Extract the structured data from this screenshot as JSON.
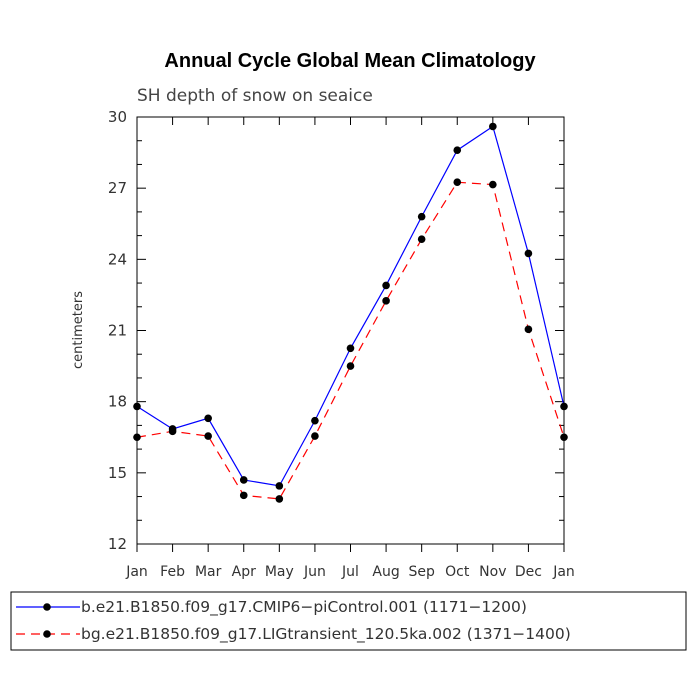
{
  "chart_data": {
    "type": "line",
    "title": "Annual Cycle Global Mean Climatology",
    "subtitle": "SH depth of snow on seaice",
    "xlabel": "",
    "ylabel": "centimeters",
    "categories": [
      "Jan",
      "Feb",
      "Mar",
      "Apr",
      "May",
      "Jun",
      "Jul",
      "Aug",
      "Sep",
      "Oct",
      "Nov",
      "Dec",
      "Jan"
    ],
    "ylim": [
      12,
      30
    ],
    "yticks": [
      12,
      15,
      18,
      21,
      24,
      27,
      30
    ],
    "series": [
      {
        "name": "b.e21.B1850.f09_g17.CMIP6−piControl.001 (1171−1200)",
        "color": "#0000ff",
        "dash": "solid",
        "values": [
          17.8,
          16.85,
          17.3,
          14.7,
          14.45,
          17.2,
          20.25,
          22.9,
          25.8,
          28.6,
          29.6,
          24.25,
          17.8
        ]
      },
      {
        "name": "bg.e21.B1850.f09_g17.LIGtransient_120.5ka.002 (1371−1400)",
        "color": "#ff0000",
        "dash": "dashed",
        "values": [
          16.5,
          16.75,
          16.55,
          14.05,
          13.9,
          16.55,
          19.5,
          22.25,
          24.85,
          27.25,
          27.15,
          21.05,
          16.5
        ]
      }
    ],
    "legend_position": "bottom"
  }
}
